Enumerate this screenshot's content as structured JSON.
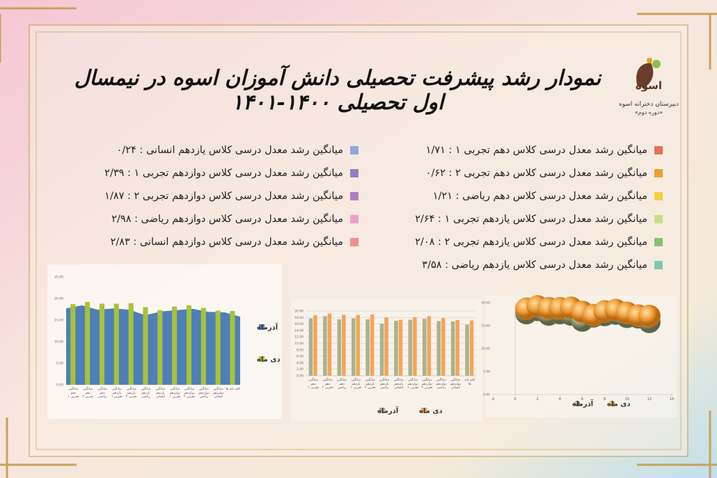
{
  "header": {
    "title": "نمودار رشد پیشرفت تحصیلی دانش آموزان اسوه در نیمسال اول تحصیلی ۱۴۰۰-۱۴۰۱",
    "logo": "اسوه",
    "school": "دبیرستان دخترانه اسوه",
    "period": "«دوره دوم»"
  },
  "info": {
    "right": [
      {
        "text": "میانگین رشد معدل درسی کلاس دهم تجربی ۱ : ۱/۷۱",
        "color": "#e8705a"
      },
      {
        "text": "میانگین رشد معدل درسی کلاس دهم تجربی ۲ : ۰/۶۲",
        "color": "#f0a030"
      },
      {
        "text": "میانگین رشد معدل درسی کلاس دهم ریاضی : ۱/۲۱",
        "color": "#f2d040"
      },
      {
        "text": "میانگین رشد معدل درسی کلاس یازدهم تجربی ۱ : ۲/۶۴",
        "color": "#c8dc8a"
      },
      {
        "text": "میانگین رشد معدل درسی کلاس یازدهم تجربی ۲ : ۲/۰۸",
        "color": "#88c070"
      },
      {
        "text": "میانگین رشد معدل درسی کلاس یازدهم ریاضی : ۳/۵۸",
        "color": "#80c8b0"
      }
    ],
    "left": [
      {
        "text": "میانگین رشد معدل درسی کلاس یازدهم انسانی : ۰/۲۴",
        "color": "#8ea8d8"
      },
      {
        "text": "میانگین رشد معدل درسی کلاس دوازدهم تجربی ۱ : ۲/۳۹",
        "color": "#9080c8"
      },
      {
        "text": "میانگین رشد معدل درسی کلاس دوازدهم تجربی ۲ : ۱/۸۷",
        "color": "#b080c0"
      },
      {
        "text": "میانگین رشد معدل درسی کلاس دوازدهم ریاضی : ۲/۹۸",
        "color": "#f0a0c8"
      },
      {
        "text": "میانگین رشد معدل درسی کلاس دوازدهم انسانی : ۲/۸۳",
        "color": "#f09090"
      }
    ]
  },
  "chart_data": [
    {
      "type": "bar",
      "categories": [
        "میانگین دهم تجربی ۱",
        "میانگین دهم تجربی ۲",
        "میانگین دهم ریاضی",
        "میانگین یازدهم تجربی ۱",
        "میانگین یازدهم تجربی ۲",
        "میانگین یازدهم ریاضی",
        "میانگین یازدهم انسانی",
        "میانگین دوازدهم تجربی ۱",
        "میانگین دوازدهم تجربی ۲",
        "میانگین دوازدهم ریاضی",
        "میانگین دوازدهم انسانی",
        "کلیه پایه ها"
      ],
      "series": [
        {
          "name": "آذرماه",
          "kind": "area",
          "color": "#4f7fb8",
          "values": [
            17.7,
            18.4,
            17.4,
            17.7,
            17.4,
            16.1,
            17.0,
            17.3,
            17.6,
            16.9,
            16.8,
            15.8
          ]
        },
        {
          "name": "دی ماه",
          "kind": "bar",
          "color": "#a8c23a",
          "values": [
            18.7,
            19.2,
            18.8,
            18.8,
            18.9,
            18.0,
            17.3,
            18.1,
            18.4,
            17.8,
            17.2,
            17.1
          ]
        }
      ],
      "ylim": [
        0,
        25
      ],
      "yticks": [
        {
          "value": 0,
          "label": "0.00"
        },
        {
          "value": 5,
          "label": "5.00"
        },
        {
          "value": 10,
          "label": "10.00"
        },
        {
          "value": 15,
          "label": "15.00"
        },
        {
          "value": 20,
          "label": "20.00"
        },
        {
          "value": 25,
          "label": "25.00"
        }
      ],
      "grid": false,
      "legend": "right"
    },
    {
      "type": "bar",
      "categories": [
        "میانگین دهم تجربی ۱",
        "میانگین دهم تجربی ۲",
        "میانگین دهم ریاضی",
        "میانگین یازدهم تجربی ۱",
        "میانگین یازدهم تجربی ۲",
        "میانگین یازدهم ریاضی",
        "میانگین یازدهم انسانی",
        "میانگین دوازدهم تجربی ۱",
        "میانگین دوازدهم تجربی ۲",
        "میانگین دوازدهم ریاضی",
        "میانگین دوازدهم انسانی",
        "کلیه پایه ها"
      ],
      "series": [
        {
          "name": "آذرماه",
          "kind": "bar",
          "color": "#a9b38e",
          "values": [
            17.7,
            18.4,
            17.4,
            17.7,
            17.4,
            16.1,
            17.0,
            17.3,
            17.6,
            16.9,
            16.8,
            15.8
          ]
        },
        {
          "name": "دی ماه",
          "kind": "bar",
          "color": "#f5a45a",
          "values": [
            18.7,
            19.2,
            18.8,
            18.8,
            18.9,
            18.0,
            17.3,
            18.1,
            18.4,
            17.8,
            17.2,
            17.1
          ]
        }
      ],
      "ylim": [
        0,
        20
      ],
      "yticks": [
        {
          "value": 0,
          "label": "0.00"
        },
        {
          "value": 2,
          "label": "2.00"
        },
        {
          "value": 4,
          "label": "4.00"
        },
        {
          "value": 6,
          "label": "6.00"
        },
        {
          "value": 8,
          "label": "8.00"
        },
        {
          "value": 10,
          "label": "10.00"
        },
        {
          "value": 12,
          "label": "12.00"
        },
        {
          "value": 14,
          "label": "14.00"
        },
        {
          "value": 16,
          "label": "16.00"
        },
        {
          "value": 18,
          "label": "18.00"
        },
        {
          "value": 20,
          "label": "20.00"
        }
      ],
      "grid": true,
      "legend": "bottom"
    },
    {
      "type": "scatter",
      "series": [
        {
          "name": "آذرماه",
          "color": "#9aa07a",
          "x": [
            1,
            2,
            3,
            4,
            5,
            6,
            7,
            8,
            9,
            10,
            11,
            12
          ],
          "values": [
            17.7,
            18.4,
            17.4,
            17.7,
            17.4,
            16.1,
            17.0,
            17.3,
            17.6,
            16.9,
            16.8,
            15.8
          ]
        },
        {
          "name": "دی ماه",
          "color": "#f0a040",
          "x": [
            1,
            2,
            3,
            4,
            5,
            6,
            7,
            8,
            9,
            10,
            11,
            12
          ],
          "values": [
            18.7,
            19.2,
            18.8,
            18.8,
            18.9,
            18.0,
            17.3,
            18.1,
            18.4,
            17.8,
            17.2,
            17.1
          ]
        }
      ],
      "xlim": [
        -2,
        14
      ],
      "xticks": [
        -2,
        0,
        2,
        4,
        6,
        8,
        10,
        12,
        14
      ],
      "ylim": [
        0,
        20
      ],
      "yticks": [
        {
          "value": 0,
          "label": "0.00"
        },
        {
          "value": 5,
          "label": "5.00"
        },
        {
          "value": 10,
          "label": "10.00"
        },
        {
          "value": 15,
          "label": "15.00"
        },
        {
          "value": 20,
          "label": "20.00"
        }
      ],
      "grid": false,
      "legend": "bottom"
    }
  ]
}
